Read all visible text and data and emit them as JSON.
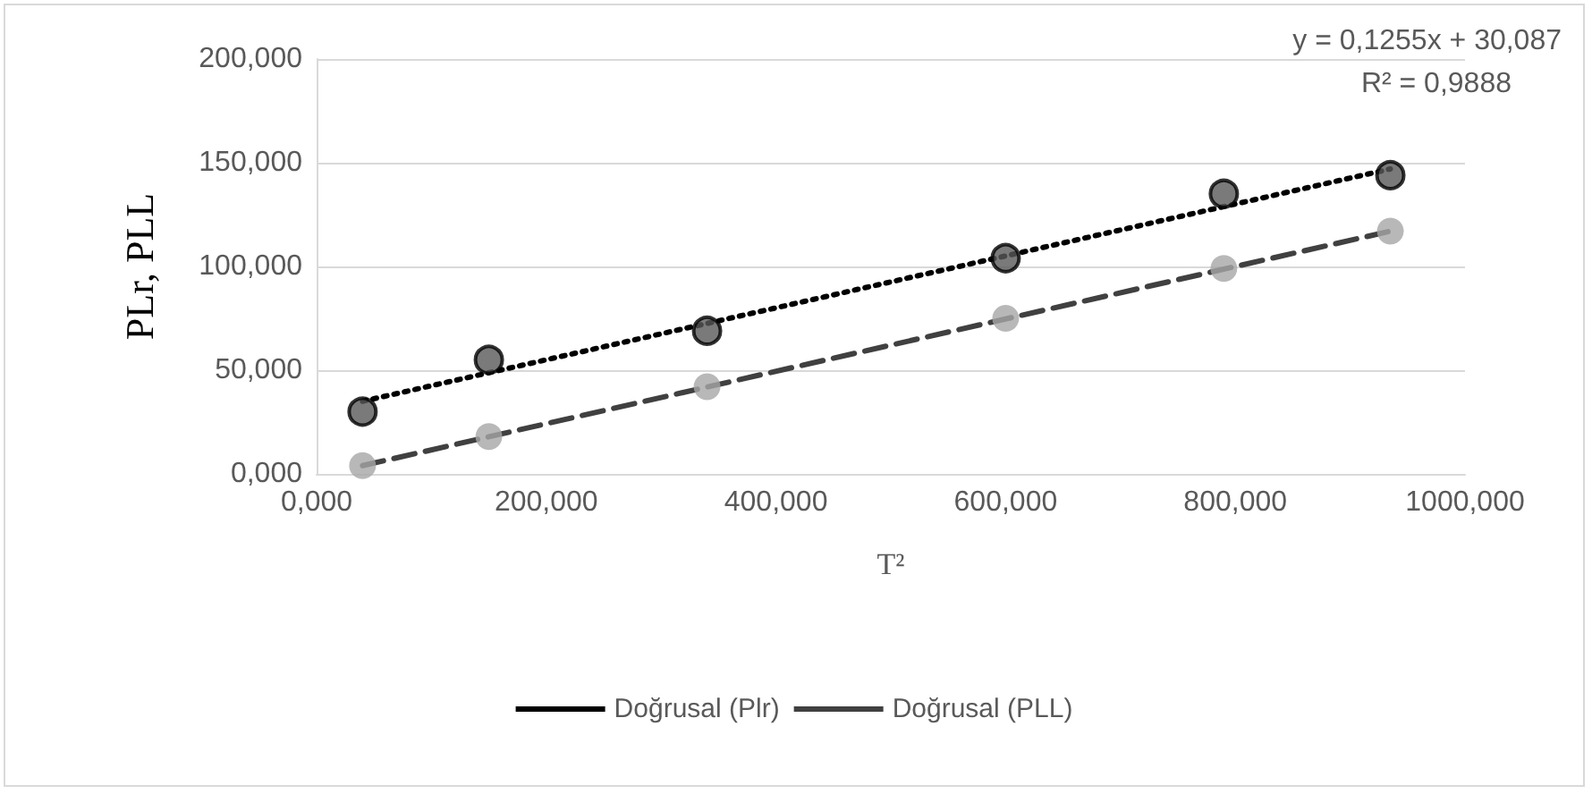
{
  "chart_data": {
    "type": "scatter",
    "xlabel": "T²",
    "ylabel": "PLr, PLL",
    "xlim": [
      0,
      1000
    ],
    "xticks": [
      {
        "value": 0,
        "label": "0,000"
      },
      {
        "value": 200,
        "label": "200,000"
      },
      {
        "value": 400,
        "label": "400,000"
      },
      {
        "value": 600,
        "label": "600,000"
      },
      {
        "value": 800,
        "label": "800,000"
      },
      {
        "value": 1000,
        "label": "1000,000"
      }
    ],
    "ylim": [
      0,
      200
    ],
    "yticks": [
      {
        "value": 0,
        "label": "0,000"
      },
      {
        "value": 50,
        "label": "50,000"
      },
      {
        "value": 100,
        "label": "100,000"
      },
      {
        "value": 150,
        "label": "150,000"
      },
      {
        "value": 200,
        "label": "200,000"
      }
    ],
    "grid": "y",
    "legend": "bottom",
    "annotations": [
      "y = 0,1255x + 30,087",
      "R² = 0,9888"
    ],
    "series": [
      {
        "color": "#595959",
        "marker": "circle",
        "x": [
          40,
          150,
          340,
          600,
          790,
          935
        ],
        "values": [
          30,
          55,
          69,
          104,
          135,
          144
        ]
      },
      {
        "color": "#a6a6a6",
        "marker": "circle",
        "x": [
          40,
          150,
          340,
          600,
          790,
          935
        ],
        "values": [
          4,
          18,
          42,
          75,
          99,
          117
        ]
      },
      {
        "type": "line",
        "name": "Doğrusal (Plr)",
        "color": "#000000",
        "line_style": "dotted",
        "marker": "none",
        "x": [
          40,
          935
        ],
        "values": [
          35,
          147
        ]
      },
      {
        "type": "line",
        "name": "Doğrusal (PLL)",
        "color": "#404040",
        "line_style": "dashed",
        "marker": "none",
        "x": [
          40,
          935
        ],
        "values": [
          4,
          117
        ]
      }
    ]
  }
}
